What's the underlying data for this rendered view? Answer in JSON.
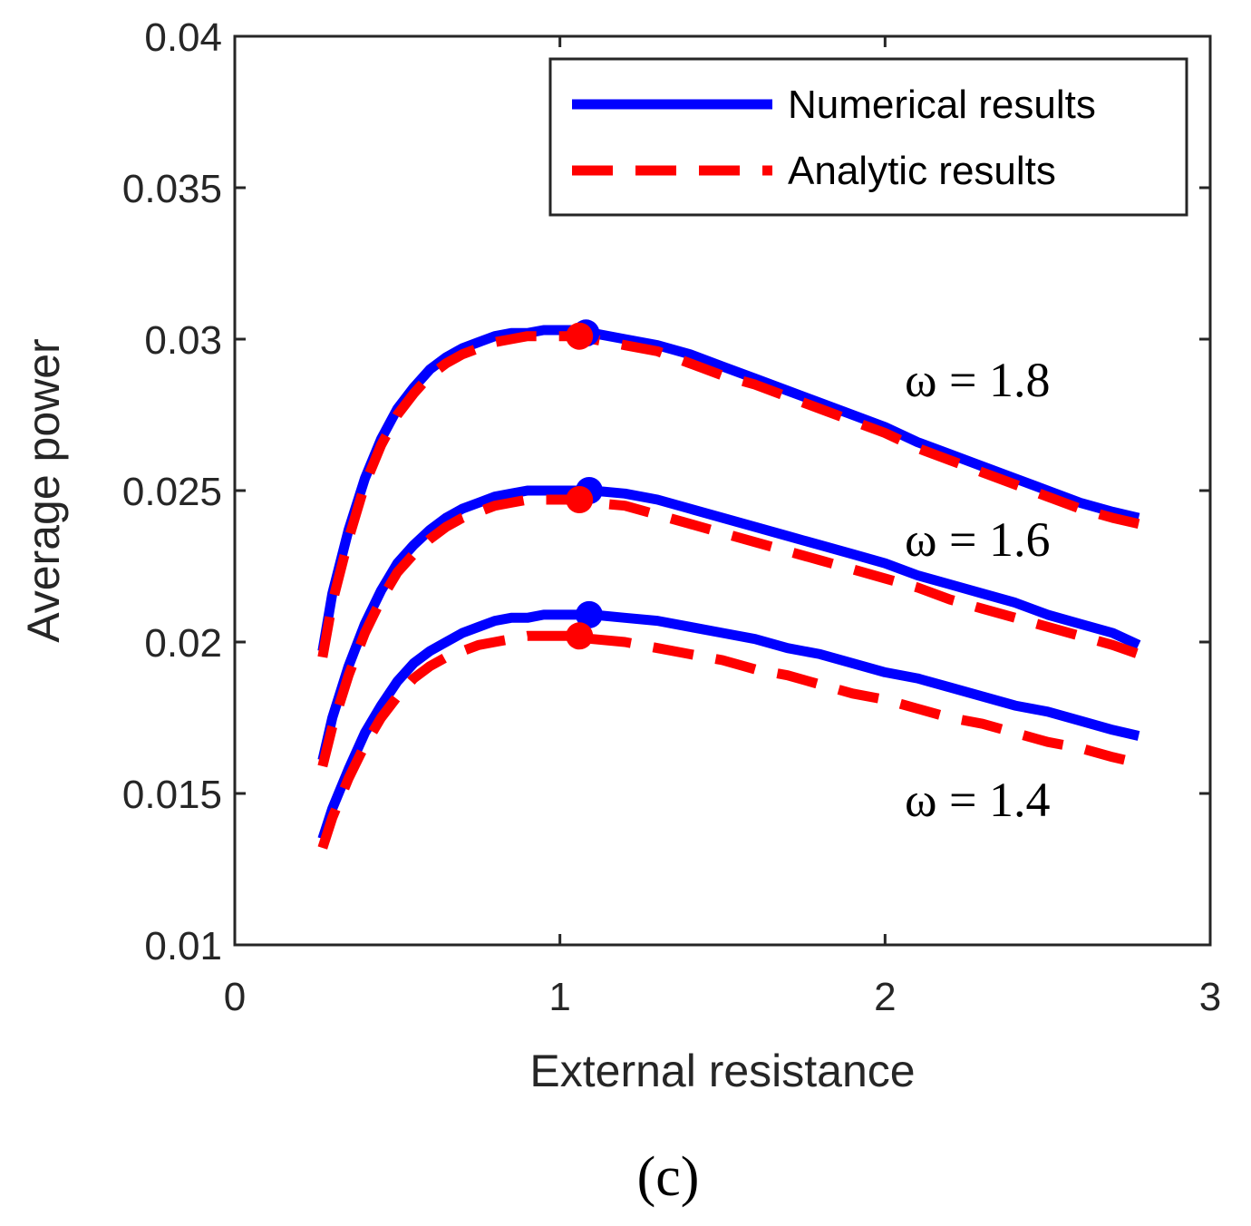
{
  "chart_data": {
    "type": "line",
    "xlabel": "External resistance",
    "ylabel": "Average power",
    "xlim": [
      0,
      3
    ],
    "ylim": [
      0.01,
      0.04
    ],
    "xticks": [
      0,
      1,
      2,
      3
    ],
    "xtick_labels": [
      "0",
      "1",
      "2",
      "3"
    ],
    "yticks": [
      0.01,
      0.015,
      0.02,
      0.025,
      0.03,
      0.035,
      0.04
    ],
    "ytick_labels": [
      "0.01",
      "0.015",
      "0.02",
      "0.025",
      "0.03",
      "0.035",
      "0.04"
    ],
    "grid": false,
    "legend": {
      "position": "top-right",
      "entries": [
        {
          "label": "Numerical results",
          "style": "solid",
          "color": "#0000ff"
        },
        {
          "label": "Analytic results",
          "style": "dashed",
          "color": "#ff0000"
        }
      ]
    },
    "x": [
      0.27,
      0.3,
      0.35,
      0.4,
      0.45,
      0.5,
      0.55,
      0.6,
      0.65,
      0.7,
      0.75,
      0.8,
      0.85,
      0.9,
      0.95,
      1.0,
      1.05,
      1.1,
      1.2,
      1.3,
      1.4,
      1.5,
      1.6,
      1.7,
      1.8,
      1.9,
      2.0,
      2.1,
      2.2,
      2.3,
      2.4,
      2.5,
      2.6,
      2.7,
      2.78
    ],
    "series": [
      {
        "name": "Numerical results",
        "omega": "ω = 1.8",
        "style": "solid",
        "color": "#0000ff",
        "values": [
          0.0197,
          0.0216,
          0.0237,
          0.0254,
          0.0267,
          0.0277,
          0.0284,
          0.029,
          0.0294,
          0.0297,
          0.0299,
          0.0301,
          0.0302,
          0.0302,
          0.0303,
          0.0303,
          0.0303,
          0.0302,
          0.03,
          0.0298,
          0.0295,
          0.0291,
          0.0287,
          0.0283,
          0.0279,
          0.0275,
          0.0271,
          0.0266,
          0.0262,
          0.0258,
          0.0254,
          0.025,
          0.0246,
          0.0243,
          0.0241
        ]
      },
      {
        "name": "Analytic results",
        "omega": "ω = 1.8",
        "style": "dashed",
        "color": "#ff0000",
        "values": [
          0.0195,
          0.0213,
          0.0234,
          0.0252,
          0.0265,
          0.0275,
          0.0282,
          0.0288,
          0.0292,
          0.0295,
          0.0297,
          0.0299,
          0.03,
          0.0301,
          0.0301,
          0.0301,
          0.0301,
          0.03,
          0.0298,
          0.0296,
          0.0292,
          0.0288,
          0.0285,
          0.0281,
          0.0277,
          0.0273,
          0.0269,
          0.0264,
          0.026,
          0.0256,
          0.0252,
          0.0248,
          0.0244,
          0.0241,
          0.0239
        ]
      },
      {
        "name": "Numerical results",
        "omega": "ω = 1.6",
        "style": "solid",
        "color": "#0000ff",
        "values": [
          0.0161,
          0.0175,
          0.0192,
          0.0206,
          0.0217,
          0.0226,
          0.0232,
          0.0237,
          0.0241,
          0.0244,
          0.0246,
          0.0248,
          0.0249,
          0.025,
          0.025,
          0.025,
          0.025,
          0.025,
          0.0249,
          0.0247,
          0.0244,
          0.0241,
          0.0238,
          0.0235,
          0.0232,
          0.0229,
          0.0226,
          0.0222,
          0.0219,
          0.0216,
          0.0213,
          0.0209,
          0.0206,
          0.0203,
          0.0199
        ]
      },
      {
        "name": "Analytic results",
        "omega": "ω = 1.6",
        "style": "dashed",
        "color": "#ff0000",
        "values": [
          0.0159,
          0.0172,
          0.0189,
          0.0203,
          0.0214,
          0.0223,
          0.0229,
          0.0234,
          0.0238,
          0.0241,
          0.0243,
          0.0245,
          0.0246,
          0.0247,
          0.0247,
          0.0247,
          0.0247,
          0.0246,
          0.0245,
          0.0242,
          0.0239,
          0.0236,
          0.0233,
          0.023,
          0.0227,
          0.0224,
          0.0221,
          0.0218,
          0.0214,
          0.0211,
          0.0208,
          0.0205,
          0.0202,
          0.0199,
          0.0196
        ]
      },
      {
        "name": "Numerical results",
        "omega": "ω = 1.4",
        "style": "solid",
        "color": "#0000ff",
        "values": [
          0.0135,
          0.0145,
          0.0158,
          0.017,
          0.0179,
          0.0187,
          0.0193,
          0.0197,
          0.02,
          0.0203,
          0.0205,
          0.0207,
          0.0208,
          0.0208,
          0.0209,
          0.0209,
          0.0209,
          0.0209,
          0.0208,
          0.0207,
          0.0205,
          0.0203,
          0.0201,
          0.0198,
          0.0196,
          0.0193,
          0.019,
          0.0188,
          0.0185,
          0.0182,
          0.0179,
          0.0177,
          0.0174,
          0.0171,
          0.0169
        ]
      },
      {
        "name": "Analytic results",
        "omega": "ω = 1.4",
        "style": "dashed",
        "color": "#ff0000",
        "values": [
          0.0132,
          0.0142,
          0.0155,
          0.0166,
          0.0175,
          0.0182,
          0.0188,
          0.0192,
          0.0195,
          0.0197,
          0.0199,
          0.02,
          0.0201,
          0.0202,
          0.0202,
          0.0202,
          0.0202,
          0.0201,
          0.02,
          0.0198,
          0.0196,
          0.0194,
          0.0191,
          0.0189,
          0.0186,
          0.0183,
          0.0181,
          0.0178,
          0.0175,
          0.0173,
          0.017,
          0.0167,
          0.0165,
          0.0162,
          0.016
        ]
      }
    ],
    "peak_markers": [
      {
        "series": "Numerical results",
        "omega": "ω = 1.8",
        "x": 1.08,
        "y": 0.0302,
        "color": "#0000ff"
      },
      {
        "series": "Analytic results",
        "omega": "ω = 1.8",
        "x": 1.06,
        "y": 0.0301,
        "color": "#ff0000"
      },
      {
        "series": "Numerical results",
        "omega": "ω = 1.6",
        "x": 1.09,
        "y": 0.025,
        "color": "#0000ff"
      },
      {
        "series": "Analytic results",
        "omega": "ω = 1.6",
        "x": 1.06,
        "y": 0.0247,
        "color": "#ff0000"
      },
      {
        "series": "Numerical results",
        "omega": "ω = 1.4",
        "x": 1.09,
        "y": 0.0209,
        "color": "#0000ff"
      },
      {
        "series": "Analytic results",
        "omega": "ω = 1.4",
        "x": 1.06,
        "y": 0.0202,
        "color": "#ff0000"
      }
    ],
    "annotations": [
      {
        "id": "omega-18",
        "text": "ω = 1.8"
      },
      {
        "id": "omega-16",
        "text": "ω = 1.6"
      },
      {
        "id": "omega-14",
        "text": "ω = 1.4"
      }
    ]
  },
  "caption": "(c)"
}
